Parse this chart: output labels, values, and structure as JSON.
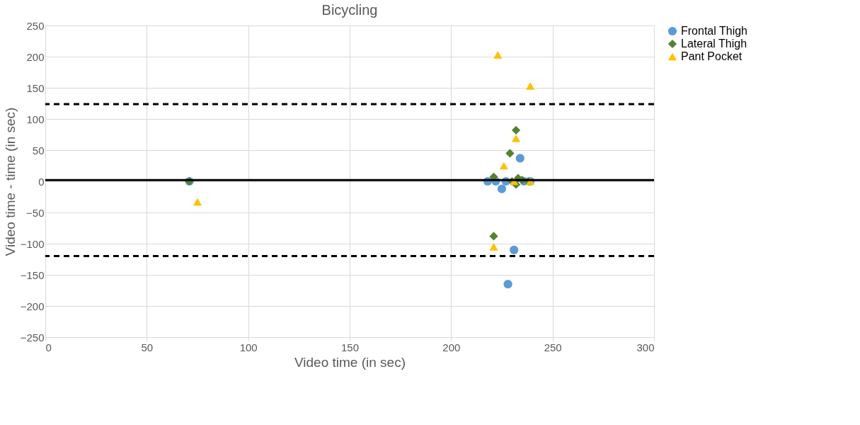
{
  "chart_data": {
    "type": "scatter",
    "title": "Bicycling",
    "xlabel": "Video time (in sec)",
    "ylabel": "Video time - time (in sec)",
    "xlim": [
      0,
      300
    ],
    "xticks": [
      0,
      50,
      100,
      150,
      200,
      250,
      300
    ],
    "ylim": [
      -250,
      250
    ],
    "yticks": [
      -250,
      -200,
      -150,
      -100,
      -50,
      0,
      50,
      100,
      150,
      200,
      250
    ],
    "grid": true,
    "legend": "right",
    "series": [
      {
        "name": "Frontal Thigh",
        "color": "#5b9bd5",
        "marker": "circle",
        "x": [
          71,
          218,
          222,
          224,
          225,
          227,
          234,
          231,
          228,
          236,
          239
        ],
        "values": [
          0,
          0,
          0,
          null,
          -12,
          0,
          37,
          -110,
          -165,
          0,
          0
        ]
      },
      {
        "name": "Lateral Thigh",
        "color": "#548235",
        "marker": "diamond",
        "x": [
          71,
          221,
          229,
          232,
          221,
          230,
          232,
          233,
          235,
          238
        ],
        "values": [
          0,
          7,
          45,
          82,
          -88,
          0,
          -5,
          5,
          2,
          0
        ]
      },
      {
        "name": "Pant Pocket",
        "color": "#ffc000",
        "marker": "triangle",
        "x": [
          75,
          223,
          239,
          232,
          226,
          230,
          231,
          221,
          239
        ],
        "values": [
          -33,
          203,
          153,
          69,
          25,
          null,
          0,
          -105,
          0
        ]
      }
    ],
    "ref_lines": [
      {
        "axis": "y",
        "value": 124,
        "line_style": "dashed",
        "color": "#000000"
      },
      {
        "axis": "y",
        "value": 2,
        "line_style": "solid",
        "color": "#000000"
      },
      {
        "axis": "y",
        "value": -120,
        "line_style": "dashed",
        "color": "#000000"
      }
    ]
  }
}
